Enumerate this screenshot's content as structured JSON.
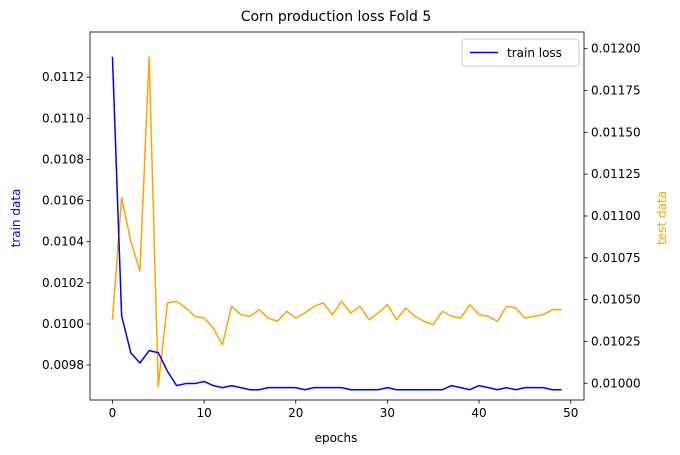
{
  "chart_data": {
    "type": "line",
    "title": "Corn production loss Fold 5",
    "xlabel": "epochs",
    "ylabel_left": "train data",
    "ylabel_right": "test data",
    "xlim": [
      -2.45,
      51.45
    ],
    "xticks": [
      0,
      10,
      20,
      30,
      40,
      50
    ],
    "xtick_labels": [
      "0",
      "10",
      "20",
      "30",
      "40",
      "50"
    ],
    "ylim_left": [
      0.00963,
      0.01142
    ],
    "yticks_left": [
      0.0098,
      0.01,
      0.0102,
      0.0104,
      0.0106,
      0.0108,
      0.011,
      0.0112
    ],
    "ytick_labels_left": [
      "0.0098",
      "0.0100",
      "0.0102",
      "0.0104",
      "0.0106",
      "0.0108",
      "0.0110",
      "0.0112"
    ],
    "ylim_right": [
      0.0099,
      0.0121
    ],
    "yticks_right": [
      0.01,
      0.01025,
      0.0105,
      0.01075,
      0.011,
      0.01125,
      0.0115,
      0.01175,
      0.012
    ],
    "ytick_labels_right": [
      "0.01000",
      "0.01025",
      "0.01050",
      "0.01075",
      "0.01100",
      "0.01125",
      "0.01150",
      "0.01175",
      "0.01200"
    ],
    "legend": {
      "position": "top-right",
      "entries": [
        "train loss"
      ]
    },
    "grid": false,
    "series": [
      {
        "name": "train loss",
        "axis": "left",
        "color": "#0000ff",
        "x": [
          0,
          1,
          2,
          3,
          4,
          5,
          6,
          7,
          8,
          9,
          10,
          11,
          12,
          13,
          14,
          15,
          16,
          17,
          18,
          19,
          20,
          21,
          22,
          23,
          24,
          25,
          26,
          27,
          28,
          29,
          30,
          31,
          32,
          33,
          34,
          35,
          36,
          37,
          38,
          39,
          40,
          41,
          42,
          43,
          44,
          45,
          46,
          47,
          48,
          49
        ],
        "values": [
          0.0113,
          0.01004,
          0.00986,
          0.00981,
          0.00987,
          0.00986,
          0.00977,
          0.0097,
          0.00971,
          0.00971,
          0.00972,
          0.0097,
          0.00969,
          0.0097,
          0.00969,
          0.00968,
          0.00968,
          0.00969,
          0.00969,
          0.00969,
          0.00969,
          0.00968,
          0.00969,
          0.00969,
          0.00969,
          0.00969,
          0.00968,
          0.00968,
          0.00968,
          0.00968,
          0.00969,
          0.00968,
          0.00968,
          0.00968,
          0.00968,
          0.00968,
          0.00968,
          0.0097,
          0.00969,
          0.00968,
          0.0097,
          0.00969,
          0.00968,
          0.00969,
          0.00968,
          0.00969,
          0.00969,
          0.00969,
          0.00968,
          0.00968
        ]
      },
      {
        "axis": "right",
        "color": "#ffa500",
        "x": [
          0,
          1,
          2,
          3,
          4,
          5,
          6,
          7,
          8,
          9,
          10,
          11,
          12,
          13,
          14,
          15,
          16,
          17,
          18,
          19,
          20,
          21,
          22,
          23,
          24,
          25,
          26,
          27,
          28,
          29,
          30,
          31,
          32,
          33,
          34,
          35,
          36,
          37,
          38,
          39,
          40,
          41,
          42,
          43,
          44,
          45,
          46,
          47,
          48,
          49
        ],
        "values": [
          0.01038,
          0.01111,
          0.01085,
          0.01067,
          0.01195,
          0.00998,
          0.01048,
          0.01049,
          0.01045,
          0.0104,
          0.01039,
          0.01033,
          0.01023,
          0.01046,
          0.01041,
          0.0104,
          0.01044,
          0.01039,
          0.01037,
          0.01043,
          0.01039,
          0.01042,
          0.01046,
          0.01048,
          0.01041,
          0.01049,
          0.01042,
          0.01046,
          0.01038,
          0.01042,
          0.01047,
          0.01038,
          0.01045,
          0.0104,
          0.01037,
          0.01035,
          0.01043,
          0.0104,
          0.01039,
          0.01047,
          0.01041,
          0.0104,
          0.01037,
          0.01046,
          0.01045,
          0.01039,
          0.0104,
          0.01041,
          0.01044,
          0.01044
        ]
      }
    ]
  }
}
